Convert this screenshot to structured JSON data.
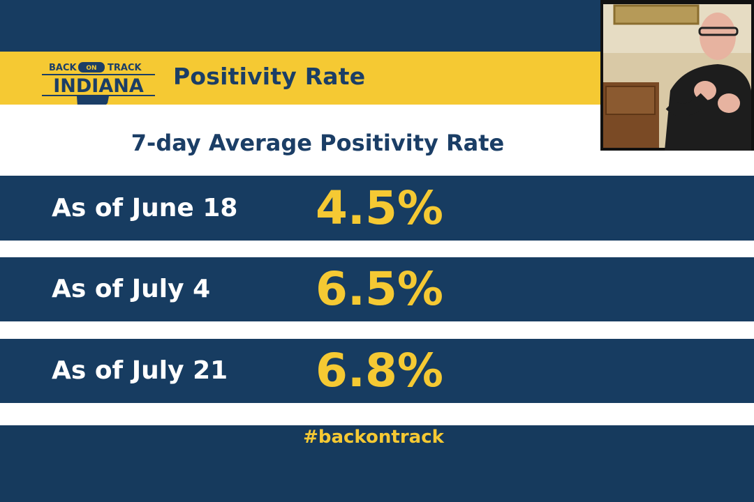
{
  "logo": {
    "top_left": "BACK",
    "middle": "ON",
    "top_right": "TRACK",
    "main": "INDIANA"
  },
  "header": {
    "title": "Positivity Rate"
  },
  "subtitle": "7-day Average Positivity Rate",
  "rows": [
    {
      "label": "As of June 18",
      "value": "4.5%"
    },
    {
      "label": "As of July 4",
      "value": "6.5%"
    },
    {
      "label": "As of July 21",
      "value": "6.8%"
    }
  ],
  "hashtag": "#backontrack",
  "colors": {
    "navy": "#173c61",
    "yellow": "#f5c933",
    "white": "#ffffff"
  }
}
